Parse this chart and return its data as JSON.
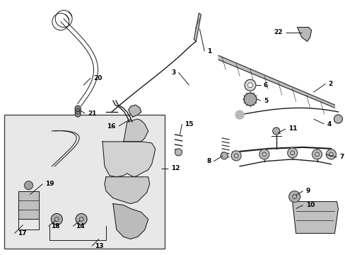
{
  "bg_color": "#ffffff",
  "line_color": "#1a1a1a",
  "label_color": "#000000",
  "box_bg": "#e8e8e8",
  "box_border": "#444444",
  "figsize": [
    4.89,
    3.6
  ],
  "dpi": 100,
  "component_color": "#cccccc",
  "component_dark": "#888888"
}
